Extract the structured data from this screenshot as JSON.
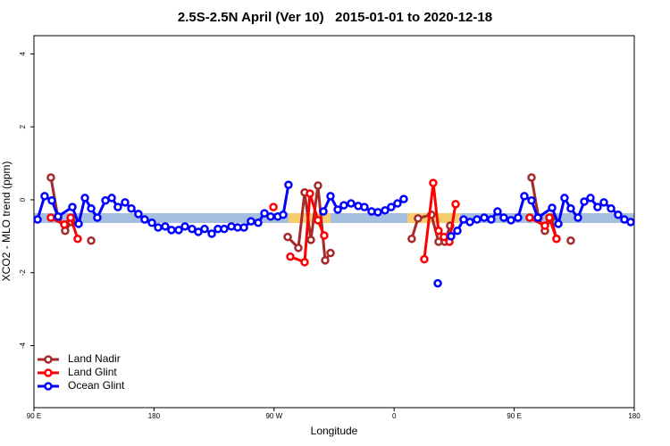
{
  "chart_data": {
    "type": "line",
    "title": "2.5S-2.5N April (Ver 10)   2015-01-01 to 2020-12-18",
    "x_label": "Longitude",
    "y_label": "XCO2 - MLO trend (ppm)",
    "xlim": [
      90,
      540
    ],
    "ylim": [
      -5.7,
      4.5
    ],
    "xticks": [
      {
        "value": 90,
        "label": "90 E"
      },
      180,
      {
        "value": 270,
        "label": "90 W"
      },
      {
        "value": 360,
        "label": "0"
      },
      {
        "value": 450,
        "label": "90 E"
      },
      {
        "value": 540,
        "label": "180"
      }
    ],
    "yticks": [
      -4,
      -2,
      0,
      2,
      4
    ],
    "legend": "bottom-left",
    "series": [
      {
        "name": "Land Nadir",
        "color": "#a52a2a",
        "x": [
          102.7,
          108.1,
          113.4,
          118.1,
          null,
          132.9,
          null,
          280.2,
          288.2,
          292.9,
          297.6,
          302.9,
          308.3,
          312.3,
          null,
          373.2,
          377.9,
          387.9,
          393.3,
          398.0,
          402.0,
          null,
          463.0,
          468.3,
          473.0,
          477.7,
          481.7,
          null,
          492.4
        ],
        "values": [
          0.61,
          -0.51,
          -0.85,
          -0.61,
          null,
          -1.12,
          null,
          -1.02,
          -1.32,
          0.2,
          -1.1,
          0.39,
          -1.66,
          -1.46,
          null,
          -1.07,
          -0.51,
          -0.41,
          -1.15,
          -1.15,
          -0.71,
          null,
          0.61,
          -0.49,
          -0.85,
          -0.49,
          -1.07,
          null,
          -1.12
        ]
      },
      {
        "name": "Land Glint",
        "color": "#ff0000",
        "x": [
          102.7,
          112.8,
          117.5,
          122.8,
          null,
          269.5,
          null,
          282.2,
          292.9,
          296.9,
          302.9,
          307.6,
          null,
          382.6,
          389.3,
          393.3,
          397.3,
          401.4,
          406.1,
          null,
          461.6,
          473.0,
          476.4,
          481.7
        ],
        "values": [
          -0.49,
          -0.68,
          -0.49,
          -1.07,
          null,
          -0.2,
          null,
          -1.56,
          -1.71,
          0.17,
          -0.56,
          -0.98,
          null,
          -1.63,
          0.46,
          -0.85,
          -1.02,
          -1.15,
          -0.12,
          null,
          -0.49,
          -0.71,
          -0.49,
          -1.07
        ]
      },
      {
        "name": "Ocean Glint",
        "color": "#0000ff",
        "x": [
          92.7,
          98.0,
          103.4,
          108.1,
          118.8,
          123.5,
          128.2,
          132.9,
          137.5,
          143.6,
          148.3,
          152.9,
          158.3,
          163.0,
          168.3,
          173.0,
          178.4,
          183.1,
          188.4,
          193.1,
          198.5,
          203.2,
          208.5,
          213.2,
          217.9,
          223.3,
          227.9,
          232.6,
          238.0,
          242.7,
          247.4,
          252.7,
          258.1,
          262.8,
          267.4,
          272.8,
          276.8,
          280.8,
          null,
          307.0,
          312.3,
          317.7,
          322.3,
          327.7,
          333.1,
          337.7,
          343.1,
          347.8,
          353.2,
          357.8,
          362.5,
          367.2,
          null,
          392.7,
          null,
          402.7,
          407.4,
          412.1,
          416.8,
          422.1,
          427.5,
          432.8,
          437.5,
          442.2,
          447.6,
          452.9,
          457.6,
          463.0,
          467.7,
          478.4,
          483.1,
          487.7,
          492.4,
          497.8,
          502.5,
          507.2,
          512.5,
          517.2,
          522.6,
          527.9,
          532.6,
          537.3
        ],
        "values": [
          -0.54,
          0.1,
          -0.02,
          -0.46,
          -0.2,
          -0.66,
          0.05,
          -0.24,
          -0.49,
          -0.02,
          0.05,
          -0.2,
          -0.07,
          -0.24,
          -0.39,
          -0.54,
          -0.63,
          -0.76,
          -0.73,
          -0.83,
          -0.83,
          -0.73,
          -0.8,
          -0.88,
          -0.8,
          -0.93,
          -0.8,
          -0.8,
          -0.73,
          -0.76,
          -0.76,
          -0.59,
          -0.63,
          -0.37,
          -0.46,
          -0.46,
          -0.41,
          0.41,
          null,
          -0.32,
          0.1,
          -0.27,
          -0.15,
          -0.1,
          -0.17,
          -0.2,
          -0.32,
          -0.34,
          -0.29,
          -0.2,
          -0.1,
          0.02,
          null,
          -2.29,
          null,
          -1.0,
          -0.85,
          -0.54,
          -0.61,
          -0.54,
          -0.49,
          -0.54,
          -0.32,
          -0.49,
          -0.56,
          -0.49,
          0.1,
          -0.02,
          -0.49,
          -0.22,
          -0.66,
          0.05,
          -0.24,
          -0.49,
          -0.05,
          0.05,
          -0.2,
          -0.07,
          -0.24,
          -0.41,
          -0.54,
          -0.61
        ]
      }
    ]
  }
}
